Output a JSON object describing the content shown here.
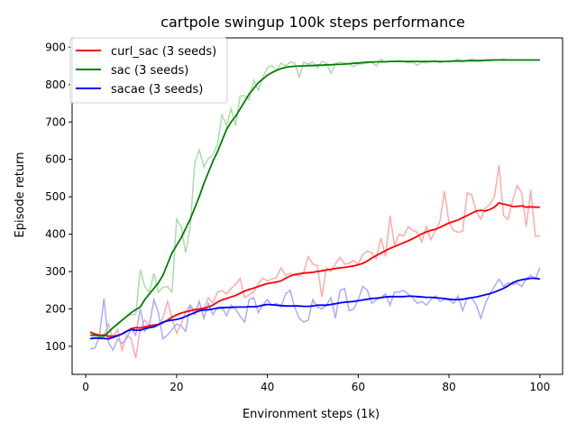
{
  "chart_data": {
    "type": "line",
    "title": "cartpole swingup 100k steps performance",
    "xlabel": "Environment steps (1k)",
    "ylabel": "Episode return",
    "xlim": [
      -3,
      105
    ],
    "ylim": [
      25,
      925
    ],
    "xticks": [
      0,
      20,
      40,
      60,
      80,
      100
    ],
    "yticks": [
      100,
      200,
      300,
      400,
      500,
      600,
      700,
      800,
      900
    ],
    "grid": false,
    "legend_position": "top-left",
    "series": [
      {
        "name": "curl_sac (3 seeds)",
        "color": "#ff0000",
        "raw_color": "#ffaaaa",
        "x": [
          1,
          2,
          3,
          4,
          5,
          6,
          7,
          8,
          9,
          10,
          11,
          12,
          13,
          14,
          15,
          16,
          17,
          18,
          19,
          20,
          21,
          22,
          23,
          24,
          25,
          26,
          27,
          28,
          29,
          30,
          31,
          32,
          33,
          34,
          35,
          36,
          37,
          38,
          39,
          40,
          41,
          42,
          43,
          44,
          45,
          46,
          47,
          48,
          49,
          50,
          51,
          52,
          53,
          54,
          55,
          56,
          57,
          58,
          59,
          60,
          61,
          62,
          63,
          64,
          65,
          66,
          67,
          68,
          69,
          70,
          71,
          72,
          73,
          74,
          75,
          76,
          77,
          78,
          79,
          80,
          81,
          82,
          83,
          84,
          85,
          86,
          87,
          88,
          89,
          90,
          91,
          92,
          93,
          94,
          95,
          96,
          97,
          98,
          99,
          100
        ],
        "smoothed": [
          138,
          133,
          130,
          130,
          127,
          127,
          129,
          133,
          140,
          147,
          150,
          149,
          152,
          155,
          157,
          158,
          163,
          170,
          178,
          184,
          189,
          192,
          195,
          198,
          200,
          202,
          205,
          210,
          218,
          224,
          228,
          232,
          236,
          242,
          248,
          252,
          256,
          260,
          264,
          268,
          270,
          272,
          275,
          282,
          288,
          292,
          294,
          296,
          297,
          298,
          300,
          302,
          304,
          306,
          308,
          310,
          311,
          313,
          315,
          318,
          322,
          328,
          336,
          343,
          349,
          356,
          362,
          367,
          372,
          377,
          382,
          388,
          394,
          401,
          406,
          410,
          413,
          418,
          424,
          430,
          434,
          438,
          444,
          450,
          456,
          462,
          464,
          462,
          466,
          472,
          484,
          480,
          478,
          474,
          474,
          476,
          472,
          473,
          472,
          472
        ],
        "raw": [
          140,
          128,
          128,
          128,
          160,
          122,
          145,
          90,
          130,
          120,
          68,
          148,
          170,
          155,
          152,
          160,
          175,
          220,
          175,
          135,
          160,
          192,
          210,
          195,
          200,
          198,
          230,
          215,
          245,
          250,
          240,
          255,
          265,
          282,
          230,
          238,
          245,
          268,
          282,
          275,
          280,
          284,
          310,
          290,
          295,
          290,
          288,
          298,
          340,
          320,
          316,
          232,
          310,
          300,
          320,
          338,
          320,
          322,
          330,
          320,
          345,
          355,
          350,
          335,
          390,
          340,
          450,
          370,
          400,
          395,
          420,
          410,
          405,
          380,
          420,
          385,
          410,
          435,
          515,
          430,
          410,
          405,
          408,
          510,
          505,
          460,
          440,
          470,
          480,
          500,
          585,
          450,
          440,
          490,
          530,
          510,
          420,
          518,
          395,
          395
        ]
      },
      {
        "name": "sac (3 seeds)",
        "color": "#008000",
        "raw_color": "#aadcaa",
        "x": [
          1,
          2,
          3,
          4,
          5,
          6,
          7,
          8,
          9,
          10,
          11,
          12,
          13,
          14,
          15,
          16,
          17,
          18,
          19,
          20,
          21,
          22,
          23,
          24,
          25,
          26,
          27,
          28,
          29,
          30,
          31,
          32,
          33,
          34,
          35,
          36,
          37,
          38,
          39,
          40,
          41,
          42,
          43,
          44,
          45,
          46,
          47,
          48,
          49,
          50,
          51,
          52,
          53,
          54,
          55,
          56,
          57,
          58,
          59,
          60,
          61,
          62,
          63,
          64,
          65,
          66,
          67,
          68,
          69,
          70,
          71,
          72,
          73,
          74,
          75,
          76,
          77,
          78,
          79,
          80,
          81,
          82,
          83,
          84,
          85,
          86,
          87,
          88,
          89,
          90,
          91,
          92,
          93,
          94,
          95,
          96,
          97,
          98,
          99,
          100
        ],
        "smoothed": [
          130,
          130,
          128,
          127,
          138,
          150,
          160,
          170,
          180,
          190,
          198,
          205,
          225,
          240,
          255,
          270,
          290,
          320,
          350,
          370,
          390,
          415,
          440,
          470,
          500,
          535,
          565,
          595,
          620,
          650,
          680,
          700,
          715,
          735,
          755,
          775,
          790,
          805,
          815,
          825,
          832,
          838,
          843,
          846,
          848,
          849,
          850,
          850,
          851,
          851,
          852,
          852,
          853,
          853,
          854,
          854,
          855,
          856,
          857,
          858,
          859,
          860,
          860,
          861,
          861,
          861,
          862,
          862,
          862,
          862,
          862,
          862,
          862,
          862,
          862,
          862,
          862,
          862,
          862,
          862,
          863,
          863,
          863,
          864,
          864,
          864,
          864,
          865,
          865,
          866,
          866,
          866,
          866,
          866,
          866,
          866,
          866,
          866,
          866,
          866
        ],
        "raw": [
          120,
          130,
          130,
          128,
          138,
          148,
          158,
          170,
          180,
          185,
          185,
          305,
          260,
          245,
          295,
          245,
          258,
          260,
          245,
          440,
          420,
          350,
          420,
          590,
          625,
          580,
          602,
          612,
          640,
          720,
          690,
          735,
          690,
          770,
          770,
          760,
          812,
          785,
          820,
          845,
          852,
          838,
          858,
          850,
          860,
          858,
          820,
          860,
          855,
          860,
          845,
          862,
          858,
          830,
          855,
          860,
          858,
          855,
          848,
          856,
          855,
          858,
          860,
          850,
          868,
          860,
          862,
          862,
          865,
          862,
          858,
          860,
          852,
          860,
          858,
          862,
          865,
          858,
          862,
          862,
          864,
          868,
          862,
          864,
          868,
          866,
          865,
          866,
          868,
          866,
          866,
          868,
          866,
          866,
          866,
          866,
          866,
          866,
          866,
          866
        ]
      },
      {
        "name": "sacae (3 seeds)",
        "color": "#0000ff",
        "raw_color": "#aaaaff",
        "x": [
          1,
          2,
          3,
          4,
          5,
          6,
          7,
          8,
          9,
          10,
          11,
          12,
          13,
          14,
          15,
          16,
          17,
          18,
          19,
          20,
          21,
          22,
          23,
          24,
          25,
          26,
          27,
          28,
          29,
          30,
          31,
          32,
          33,
          34,
          35,
          36,
          37,
          38,
          39,
          40,
          41,
          42,
          43,
          44,
          45,
          46,
          47,
          48,
          49,
          50,
          51,
          52,
          53,
          54,
          55,
          56,
          57,
          58,
          59,
          60,
          61,
          62,
          63,
          64,
          65,
          66,
          67,
          68,
          69,
          70,
          71,
          72,
          73,
          74,
          75,
          76,
          77,
          78,
          79,
          80,
          81,
          82,
          83,
          84,
          85,
          86,
          87,
          88,
          89,
          90,
          91,
          92,
          93,
          94,
          95,
          96,
          97,
          98,
          99,
          100
        ],
        "smoothed": [
          120,
          122,
          122,
          121,
          120,
          124,
          128,
          133,
          140,
          145,
          143,
          143,
          147,
          150,
          152,
          158,
          165,
          168,
          170,
          172,
          175,
          180,
          185,
          190,
          195,
          197,
          198,
          200,
          202,
          203,
          204,
          204,
          205,
          205,
          205,
          206,
          206,
          207,
          210,
          212,
          211,
          210,
          209,
          208,
          208,
          208,
          208,
          207,
          207,
          208,
          210,
          210,
          210,
          212,
          214,
          216,
          218,
          219,
          220,
          222,
          224,
          226,
          228,
          229,
          230,
          232,
          233,
          233,
          233,
          233,
          234,
          234,
          233,
          232,
          231,
          231,
          230,
          229,
          228,
          226,
          225,
          225,
          226,
          228,
          230,
          232,
          235,
          238,
          241,
          245,
          250,
          255,
          262,
          270,
          275,
          278,
          280,
          282,
          282,
          280
        ],
        "raw": [
          93,
          95,
          125,
          228,
          110,
          90,
          120,
          108,
          120,
          148,
          130,
          200,
          140,
          155,
          225,
          190,
          120,
          130,
          145,
          160,
          155,
          140,
          210,
          185,
          220,
          175,
          215,
          185,
          205,
          205,
          182,
          210,
          200,
          180,
          165,
          225,
          230,
          190,
          210,
          225,
          210,
          215,
          205,
          240,
          250,
          205,
          175,
          165,
          170,
          225,
          205,
          200,
          210,
          230,
          175,
          250,
          255,
          195,
          200,
          225,
          260,
          250,
          215,
          225,
          230,
          240,
          210,
          245,
          245,
          250,
          240,
          230,
          215,
          220,
          210,
          225,
          235,
          220,
          225,
          225,
          215,
          235,
          195,
          230,
          230,
          210,
          175,
          215,
          240,
          260,
          280,
          260,
          270,
          265,
          270,
          260,
          280,
          290,
          280,
          310
        ]
      }
    ]
  }
}
